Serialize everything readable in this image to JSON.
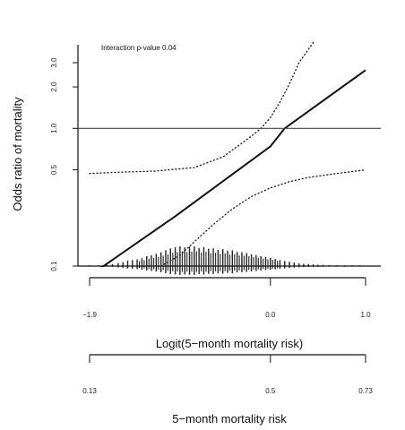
{
  "chart_data": {
    "type": "line",
    "annotation": "Interaction p-value 0.04",
    "ylabel": "Odds ratio of mortality",
    "y_scale": "log",
    "yticks": [
      {
        "value": 0.1,
        "label": "0.1"
      },
      {
        "value": 0.5,
        "label": "0.5"
      },
      {
        "value": 1.0,
        "label": "1.0"
      },
      {
        "value": 2.0,
        "label": "2.0"
      },
      {
        "value": 3.0,
        "label": "3.0"
      }
    ],
    "reference_line_y": 1.0,
    "xlabel_primary": "Logit(5−month mortality risk)",
    "xticks_primary": [
      {
        "value": -1.9,
        "label": "−1.9"
      },
      {
        "value": 0.0,
        "label": "0.0"
      },
      {
        "value": 1.0,
        "label": "1.0"
      }
    ],
    "xlabel_secondary": "5−month mortality risk",
    "xticks_secondary": [
      {
        "value": -1.9,
        "label": "0.13"
      },
      {
        "value": 0.0,
        "label": "0.5"
      },
      {
        "value": 1.0,
        "label": "0.73"
      }
    ],
    "xlim": [
      -1.9,
      1.0
    ],
    "ylim": [
      0.1,
      3.0
    ],
    "series": [
      {
        "style": "solid",
        "x": [
          -1.9,
          -1.0,
          0.0,
          0.15,
          1.0
        ],
        "y": [
          0.085,
          0.23,
          0.74,
          1.0,
          2.65
        ]
      },
      {
        "style": "dotted",
        "x": [
          -1.9,
          -1.6,
          -1.2,
          -0.8,
          -0.5,
          -0.3,
          -0.2,
          -0.1,
          0.0,
          0.1,
          0.2,
          0.3,
          0.45
        ],
        "y": [
          0.47,
          0.48,
          0.49,
          0.52,
          0.62,
          0.78,
          0.88,
          1.0,
          1.2,
          1.55,
          2.1,
          3.0,
          4.2
        ]
      },
      {
        "style": "dotted",
        "x": [
          -1.15,
          -0.95,
          -0.8,
          -0.6,
          -0.4,
          -0.2,
          0.0,
          0.2,
          0.4,
          0.6,
          0.8,
          1.0
        ],
        "y": [
          0.1,
          0.12,
          0.15,
          0.2,
          0.26,
          0.32,
          0.37,
          0.41,
          0.44,
          0.46,
          0.48,
          0.5
        ]
      }
    ],
    "rug": {
      "x_values": [
        -1.9,
        -1.8,
        -1.72,
        -1.66,
        -1.6,
        -1.55,
        -1.5,
        -1.45,
        -1.4,
        -1.35,
        -1.3,
        -1.25,
        -1.2,
        -1.15,
        -1.1,
        -1.05,
        -1.0,
        -0.95,
        -0.9,
        -0.85,
        -0.8,
        -0.75,
        -0.7,
        -0.65,
        -0.6,
        -0.55,
        -0.5,
        -0.45,
        -0.4,
        -0.35,
        -0.3,
        -0.25,
        -0.2,
        -0.15,
        -0.1,
        -0.05,
        0.0,
        0.05,
        0.1,
        0.15,
        0.2,
        0.25,
        0.3,
        0.35,
        0.4,
        0.45,
        0.5,
        0.55,
        0.62,
        0.7,
        0.78,
        0.86,
        0.94
      ],
      "heights": [
        0.04,
        0.04,
        0.06,
        0.1,
        0.16,
        0.2,
        0.28,
        0.3,
        0.34,
        0.4,
        0.5,
        0.55,
        0.62,
        0.7,
        0.8,
        0.9,
        0.95,
        1.0,
        0.95,
        0.98,
        1.0,
        0.92,
        0.96,
        0.88,
        0.9,
        0.82,
        0.86,
        0.78,
        0.8,
        0.72,
        0.7,
        0.66,
        0.6,
        0.56,
        0.5,
        0.46,
        0.42,
        0.36,
        0.3,
        0.26,
        0.22,
        0.18,
        0.14,
        0.12,
        0.1,
        0.08,
        0.07,
        0.06,
        0.05,
        0.05,
        0.04,
        0.04,
        0.04
      ]
    },
    "colors": {
      "line": "#111111",
      "axis": "#111111",
      "ref": "#444444"
    },
    "grid": false,
    "legend": "none"
  }
}
